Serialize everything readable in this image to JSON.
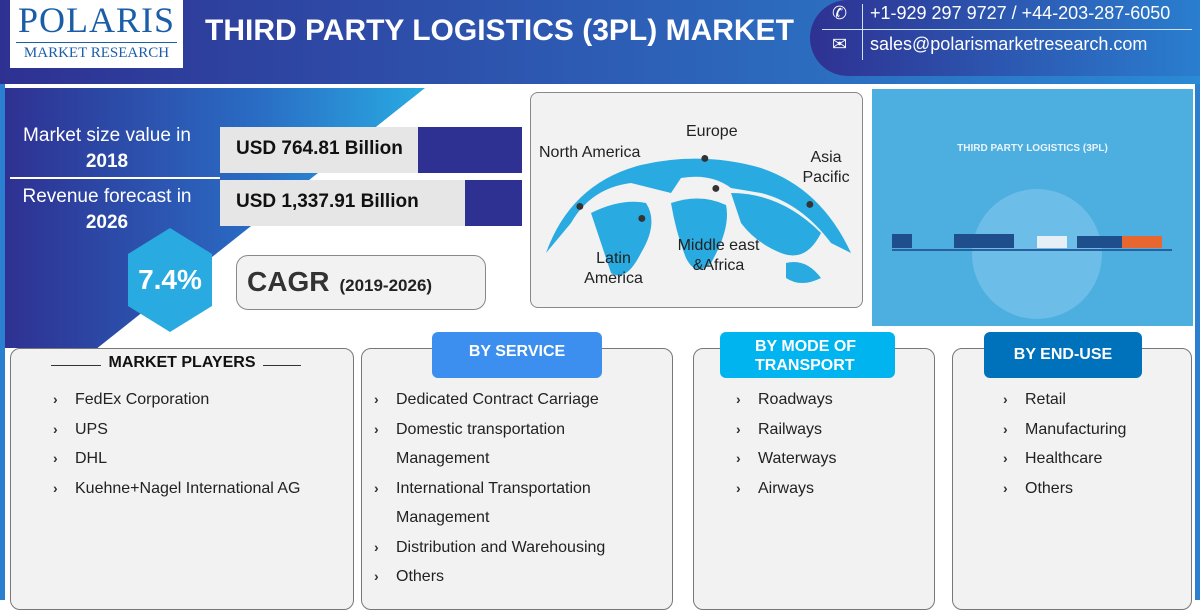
{
  "header": {
    "logo": {
      "name": "POLARIS",
      "sub": "MARKET RESEARCH"
    },
    "title": "THIRD PARTY LOGISTICS (3PL) MARKET",
    "contact": {
      "phone_icon": "phone-icon",
      "phone": "+1-929 297 9727   / +44-203-287-6050",
      "email_icon": "envelope-icon",
      "email": "sales@polarismarketresearch.com"
    }
  },
  "stats": {
    "market_size_label": "Market size value in",
    "market_size_year": "2018",
    "market_size_value": "USD 764.81 Billion",
    "forecast_label": "Revenue forecast in",
    "forecast_year": "2026",
    "forecast_value": "USD 1,337.91 Billion",
    "cagr_value": "7.4%",
    "cagr_label": "CAGR",
    "cagr_period": "(2019-2026)"
  },
  "map": {
    "regions": [
      "North America",
      "Europe",
      "Asia Pacific",
      "Latin America",
      "Middle east &Africa"
    ]
  },
  "illustration": {
    "title": "THIRD PARTY LOGISTICS (3PL)"
  },
  "market_players": {
    "title": "MARKET PLAYERS",
    "items": [
      "FedEx Corporation",
      "UPS",
      "DHL",
      "Kuehne+Nagel International AG"
    ]
  },
  "by_service": {
    "title": "BY SERVICE",
    "items": [
      "Dedicated Contract Carriage",
      "Domestic transportation",
      "Management",
      "International Transportation",
      "Management",
      "Distribution and Warehousing",
      "Others"
    ]
  },
  "by_mode": {
    "title_1": "BY MODE OF",
    "title_2": "TRANSPORT",
    "items": [
      "Roadways",
      "Railways",
      "Waterways",
      "Airways"
    ]
  },
  "by_end_use": {
    "title": "BY END-USE",
    "items": [
      "Retail",
      "Manufacturing",
      "Healthcare",
      "Others"
    ]
  },
  "colors": {
    "navy": "#2e3192",
    "blue": "#2a7fd0",
    "cyan": "#29abe2",
    "service_tag": "#3d8fef",
    "mode_tag": "#00b4f0",
    "enduse_tag": "#0072bc"
  }
}
